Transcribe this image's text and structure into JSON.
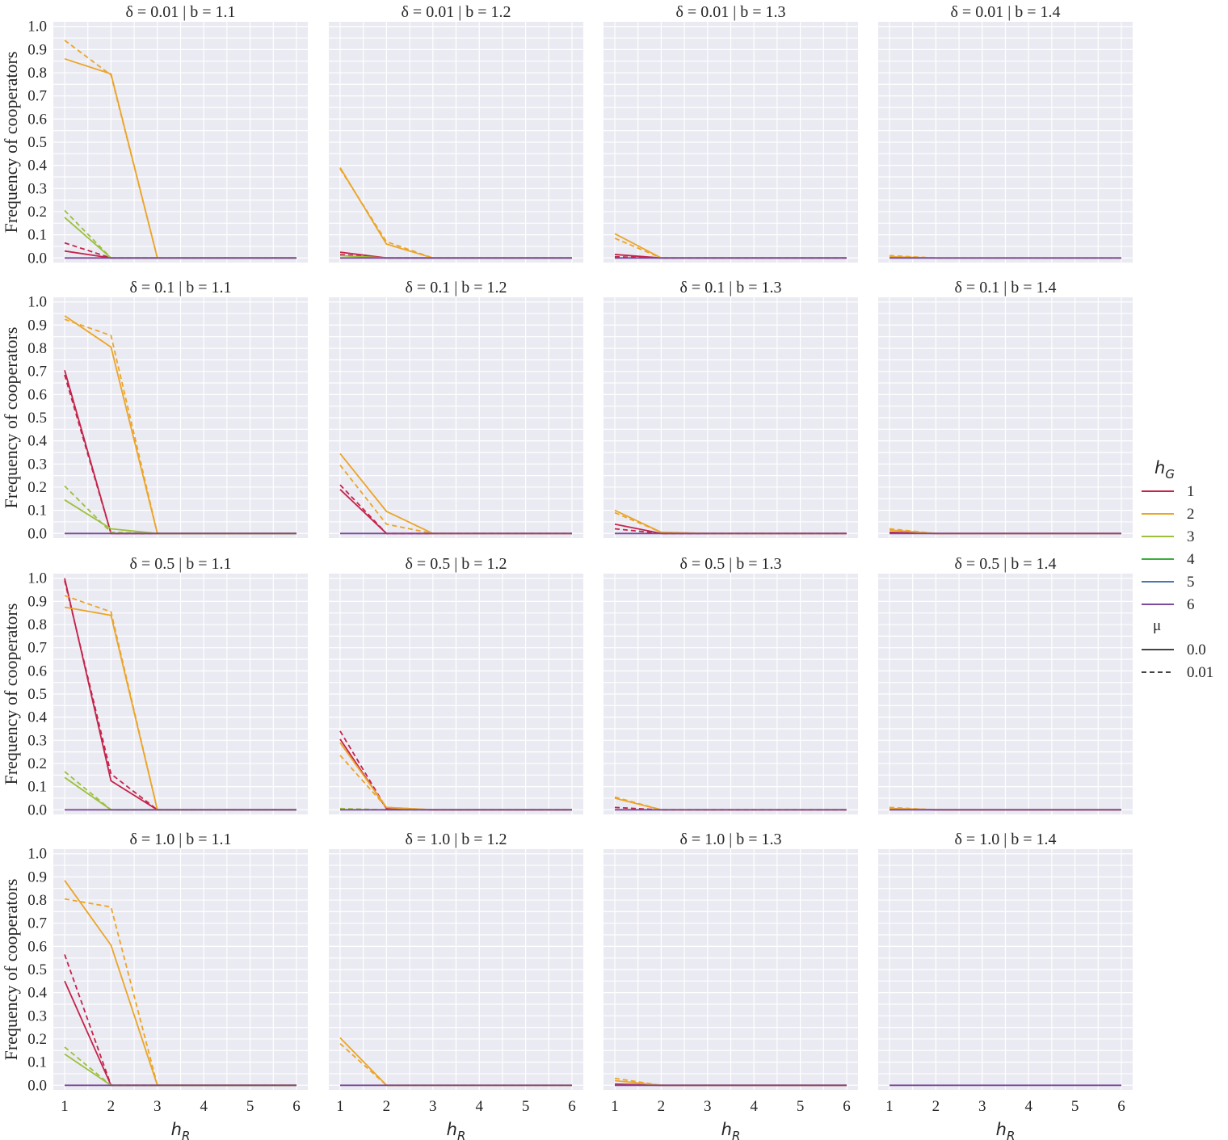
{
  "chart_data": {
    "type": "line",
    "layout": "4x4 facet grid",
    "x": [
      1,
      2,
      3,
      4,
      5,
      6
    ],
    "xlabel_main": "h",
    "xlabel_sub": "R",
    "ylabel": "Frequency of cooperators",
    "ylim": [
      -0.02,
      1.02
    ],
    "yticks": [
      "0.0",
      "0.1",
      "0.2",
      "0.3",
      "0.4",
      "0.5",
      "0.6",
      "0.7",
      "0.8",
      "0.9",
      "1.0"
    ],
    "xticks": [
      "1",
      "2",
      "3",
      "4",
      "5",
      "6"
    ],
    "grid": true,
    "legend": {
      "placement": "right",
      "hue_title_main": "h",
      "hue_title_sub": "G",
      "hue_entries": [
        {
          "label": "1",
          "color": "#c4234a"
        },
        {
          "label": "2",
          "color": "#eba528"
        },
        {
          "label": "3",
          "color": "#9cc03c"
        },
        {
          "label": "4",
          "color": "#3aae3c"
        },
        {
          "label": "5",
          "color": "#4a73b0"
        },
        {
          "label": "6",
          "color": "#7a4a9c"
        }
      ],
      "style_title": "μ",
      "style_entries": [
        {
          "label": "0.0",
          "dash": "solid"
        },
        {
          "label": "0.01",
          "dash": "dashed"
        }
      ]
    },
    "panels": [
      {
        "title": "δ = 0.01 | b = 1.1",
        "series": [
          {
            "hG": "1",
            "mu": "0.0",
            "values": [
              0.03,
              0,
              0,
              0,
              0,
              0
            ]
          },
          {
            "hG": "1",
            "mu": "0.01",
            "values": [
              0.065,
              0,
              0,
              0,
              0,
              0
            ]
          },
          {
            "hG": "2",
            "mu": "0.0",
            "values": [
              0.86,
              0.795,
              0,
              0,
              0,
              0
            ]
          },
          {
            "hG": "2",
            "mu": "0.01",
            "values": [
              0.94,
              0.79,
              0,
              0,
              0,
              0
            ]
          },
          {
            "hG": "3",
            "mu": "0.0",
            "values": [
              0.175,
              0,
              0,
              0,
              0,
              0
            ]
          },
          {
            "hG": "3",
            "mu": "0.01",
            "values": [
              0.205,
              0,
              0,
              0,
              0,
              0
            ]
          },
          {
            "hG": "6",
            "mu": "0.0",
            "values": [
              0,
              0,
              0,
              0,
              0,
              0
            ]
          }
        ]
      },
      {
        "title": "δ = 0.01 | b = 1.2",
        "series": [
          {
            "hG": "1",
            "mu": "0.0",
            "values": [
              0.025,
              0,
              0,
              0,
              0,
              0
            ]
          },
          {
            "hG": "1",
            "mu": "0.01",
            "values": [
              0.015,
              0,
              0,
              0,
              0,
              0
            ]
          },
          {
            "hG": "2",
            "mu": "0.0",
            "values": [
              0.39,
              0.06,
              0,
              0,
              0,
              0
            ]
          },
          {
            "hG": "2",
            "mu": "0.01",
            "values": [
              0.385,
              0.07,
              0,
              0,
              0,
              0
            ]
          },
          {
            "hG": "3",
            "mu": "0.0",
            "values": [
              0.01,
              0,
              0,
              0,
              0,
              0
            ]
          },
          {
            "hG": "6",
            "mu": "0.0",
            "values": [
              0,
              0,
              0,
              0,
              0,
              0
            ]
          }
        ]
      },
      {
        "title": "δ = 0.01 | b = 1.3",
        "series": [
          {
            "hG": "1",
            "mu": "0.0",
            "values": [
              0.015,
              0,
              0,
              0,
              0,
              0
            ]
          },
          {
            "hG": "1",
            "mu": "0.01",
            "values": [
              0.005,
              0,
              0,
              0,
              0,
              0
            ]
          },
          {
            "hG": "2",
            "mu": "0.0",
            "values": [
              0.105,
              0,
              0,
              0,
              0,
              0
            ]
          },
          {
            "hG": "2",
            "mu": "0.01",
            "values": [
              0.085,
              0,
              0,
              0,
              0,
              0
            ]
          },
          {
            "hG": "6",
            "mu": "0.0",
            "values": [
              0,
              0,
              0,
              0,
              0,
              0
            ]
          }
        ]
      },
      {
        "title": "δ = 0.01 | b = 1.4",
        "series": [
          {
            "hG": "2",
            "mu": "0.0",
            "values": [
              0.005,
              0,
              0,
              0,
              0,
              0
            ]
          },
          {
            "hG": "2",
            "mu": "0.01",
            "values": [
              0.01,
              0,
              0,
              0,
              0,
              0
            ]
          },
          {
            "hG": "6",
            "mu": "0.0",
            "values": [
              0,
              0,
              0,
              0,
              0,
              0
            ]
          }
        ]
      },
      {
        "title": "δ = 0.1 | b = 1.1",
        "series": [
          {
            "hG": "1",
            "mu": "0.0",
            "values": [
              0.705,
              0,
              0,
              0,
              0,
              0
            ]
          },
          {
            "hG": "1",
            "mu": "0.01",
            "values": [
              0.685,
              0,
              0,
              0,
              0,
              0
            ]
          },
          {
            "hG": "2",
            "mu": "0.0",
            "values": [
              0.94,
              0.805,
              0,
              0,
              0,
              0
            ]
          },
          {
            "hG": "2",
            "mu": "0.01",
            "values": [
              0.925,
              0.855,
              0,
              0,
              0,
              0
            ]
          },
          {
            "hG": "3",
            "mu": "0.0",
            "values": [
              0.145,
              0.02,
              0,
              0,
              0,
              0
            ]
          },
          {
            "hG": "3",
            "mu": "0.01",
            "values": [
              0.205,
              0.005,
              0,
              0,
              0,
              0
            ]
          },
          {
            "hG": "6",
            "mu": "0.0",
            "values": [
              0,
              0,
              0,
              0,
              0,
              0
            ]
          }
        ]
      },
      {
        "title": "δ = 0.1 | b = 1.2",
        "series": [
          {
            "hG": "1",
            "mu": "0.0",
            "values": [
              0.19,
              0,
              0,
              0,
              0,
              0
            ]
          },
          {
            "hG": "1",
            "mu": "0.01",
            "values": [
              0.21,
              0,
              0,
              0,
              0,
              0
            ]
          },
          {
            "hG": "2",
            "mu": "0.0",
            "values": [
              0.345,
              0.095,
              0,
              0,
              0,
              0
            ]
          },
          {
            "hG": "2",
            "mu": "0.01",
            "values": [
              0.295,
              0.04,
              0,
              0,
              0,
              0
            ]
          },
          {
            "hG": "6",
            "mu": "0.0",
            "values": [
              0,
              0,
              0,
              0,
              0,
              0
            ]
          }
        ]
      },
      {
        "title": "δ = 0.1 | b = 1.3",
        "series": [
          {
            "hG": "1",
            "mu": "0.0",
            "values": [
              0.04,
              0,
              0,
              0,
              0,
              0
            ]
          },
          {
            "hG": "1",
            "mu": "0.01",
            "values": [
              0.02,
              0,
              0,
              0,
              0,
              0
            ]
          },
          {
            "hG": "2",
            "mu": "0.0",
            "values": [
              0.1,
              0.005,
              0,
              0,
              0,
              0
            ]
          },
          {
            "hG": "2",
            "mu": "0.01",
            "values": [
              0.09,
              0.005,
              0,
              0,
              0,
              0
            ]
          },
          {
            "hG": "6",
            "mu": "0.0",
            "values": [
              0,
              0,
              0,
              0,
              0,
              0
            ]
          }
        ]
      },
      {
        "title": "δ = 0.1 | b = 1.4",
        "series": [
          {
            "hG": "1",
            "mu": "0.0",
            "values": [
              0.005,
              0,
              0,
              0,
              0,
              0
            ]
          },
          {
            "hG": "2",
            "mu": "0.0",
            "values": [
              0.015,
              0,
              0,
              0,
              0,
              0
            ]
          },
          {
            "hG": "2",
            "mu": "0.01",
            "values": [
              0.02,
              0,
              0,
              0,
              0,
              0
            ]
          },
          {
            "hG": "6",
            "mu": "0.0",
            "values": [
              0,
              0,
              0,
              0,
              0,
              0
            ]
          }
        ]
      },
      {
        "title": "δ = 0.5 | b = 1.1",
        "series": [
          {
            "hG": "1",
            "mu": "0.0",
            "values": [
              1.0,
              0.125,
              0,
              0,
              0,
              0
            ]
          },
          {
            "hG": "1",
            "mu": "0.01",
            "values": [
              0.99,
              0.155,
              0,
              0,
              0,
              0
            ]
          },
          {
            "hG": "2",
            "mu": "0.0",
            "values": [
              0.875,
              0.84,
              0,
              0,
              0,
              0
            ]
          },
          {
            "hG": "2",
            "mu": "0.01",
            "values": [
              0.925,
              0.855,
              0,
              0,
              0,
              0
            ]
          },
          {
            "hG": "3",
            "mu": "0.0",
            "values": [
              0.14,
              0,
              0,
              0,
              0,
              0
            ]
          },
          {
            "hG": "3",
            "mu": "0.01",
            "values": [
              0.165,
              0,
              0,
              0,
              0,
              0
            ]
          },
          {
            "hG": "6",
            "mu": "0.0",
            "values": [
              0,
              0,
              0,
              0,
              0,
              0
            ]
          }
        ]
      },
      {
        "title": "δ = 0.5 | b = 1.2",
        "series": [
          {
            "hG": "1",
            "mu": "0.0",
            "values": [
              0.305,
              0.005,
              0,
              0,
              0,
              0
            ]
          },
          {
            "hG": "1",
            "mu": "0.01",
            "values": [
              0.34,
              0.005,
              0,
              0,
              0,
              0
            ]
          },
          {
            "hG": "2",
            "mu": "0.0",
            "values": [
              0.29,
              0.01,
              0,
              0,
              0,
              0
            ]
          },
          {
            "hG": "2",
            "mu": "0.01",
            "values": [
              0.235,
              0.01,
              0,
              0,
              0,
              0
            ]
          },
          {
            "hG": "3",
            "mu": "0.01",
            "values": [
              0.005,
              0,
              0,
              0,
              0,
              0
            ]
          },
          {
            "hG": "6",
            "mu": "0.0",
            "values": [
              0,
              0,
              0,
              0,
              0,
              0
            ]
          }
        ]
      },
      {
        "title": "δ = 0.5 | b = 1.3",
        "series": [
          {
            "hG": "1",
            "mu": "0.01",
            "values": [
              0.01,
              0,
              0,
              0,
              0,
              0
            ]
          },
          {
            "hG": "2",
            "mu": "0.0",
            "values": [
              0.05,
              0,
              0,
              0,
              0,
              0
            ]
          },
          {
            "hG": "2",
            "mu": "0.01",
            "values": [
              0.055,
              0,
              0,
              0,
              0,
              0
            ]
          },
          {
            "hG": "6",
            "mu": "0.0",
            "values": [
              0,
              0,
              0,
              0,
              0,
              0
            ]
          }
        ]
      },
      {
        "title": "δ = 0.5 | b = 1.4",
        "series": [
          {
            "hG": "1",
            "mu": "0.0",
            "values": [
              0.005,
              0,
              0,
              0,
              0,
              0
            ]
          },
          {
            "hG": "2",
            "mu": "0.0",
            "values": [
              0.005,
              0,
              0,
              0,
              0,
              0
            ]
          },
          {
            "hG": "2",
            "mu": "0.01",
            "values": [
              0.01,
              0,
              0,
              0,
              0,
              0
            ]
          },
          {
            "hG": "6",
            "mu": "0.0",
            "values": [
              0,
              0,
              0,
              0,
              0,
              0
            ]
          }
        ]
      },
      {
        "title": "δ = 1.0 | b = 1.1",
        "series": [
          {
            "hG": "1",
            "mu": "0.0",
            "values": [
              0.45,
              0,
              0,
              0,
              0,
              0
            ]
          },
          {
            "hG": "1",
            "mu": "0.01",
            "values": [
              0.565,
              0,
              0,
              0,
              0,
              0
            ]
          },
          {
            "hG": "2",
            "mu": "0.0",
            "values": [
              0.885,
              0.605,
              0,
              0,
              0,
              0
            ]
          },
          {
            "hG": "2",
            "mu": "0.01",
            "values": [
              0.805,
              0.77,
              0,
              0,
              0,
              0
            ]
          },
          {
            "hG": "3",
            "mu": "0.0",
            "values": [
              0.135,
              0,
              0,
              0,
              0,
              0
            ]
          },
          {
            "hG": "3",
            "mu": "0.01",
            "values": [
              0.165,
              0,
              0,
              0,
              0,
              0
            ]
          },
          {
            "hG": "6",
            "mu": "0.0",
            "values": [
              0,
              0,
              0,
              0,
              0,
              0
            ]
          }
        ]
      },
      {
        "title": "δ = 1.0 | b = 1.2",
        "series": [
          {
            "hG": "2",
            "mu": "0.0",
            "values": [
              0.205,
              0,
              0,
              0,
              0,
              0
            ]
          },
          {
            "hG": "2",
            "mu": "0.01",
            "values": [
              0.18,
              0,
              0,
              0,
              0,
              0
            ]
          },
          {
            "hG": "6",
            "mu": "0.0",
            "values": [
              0,
              0,
              0,
              0,
              0,
              0
            ]
          }
        ]
      },
      {
        "title": "δ = 1.0 | b = 1.3",
        "series": [
          {
            "hG": "1",
            "mu": "0.0",
            "values": [
              0.005,
              0,
              0,
              0,
              0,
              0
            ]
          },
          {
            "hG": "2",
            "mu": "0.0",
            "values": [
              0.02,
              0,
              0,
              0,
              0,
              0
            ]
          },
          {
            "hG": "2",
            "mu": "0.01",
            "values": [
              0.03,
              0,
              0,
              0,
              0,
              0
            ]
          },
          {
            "hG": "6",
            "mu": "0.0",
            "values": [
              0,
              0,
              0,
              0,
              0,
              0
            ]
          }
        ]
      },
      {
        "title": "δ = 1.0 | b = 1.4",
        "series": [
          {
            "hG": "6",
            "mu": "0.0",
            "values": [
              0,
              0,
              0,
              0,
              0,
              0
            ]
          }
        ]
      }
    ]
  }
}
